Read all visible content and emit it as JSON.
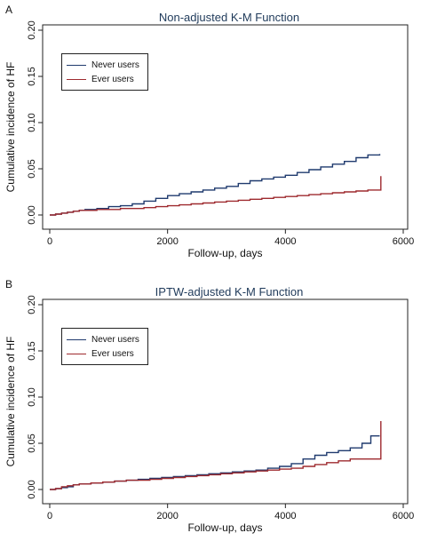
{
  "chart_data": [
    {
      "panel": "A",
      "type": "line",
      "step": true,
      "title": "Non-adjusted K-M Function",
      "xlabel": "Follow-up, days",
      "ylabel": "Cumulative incidence of HF",
      "xlim": [
        0,
        6000
      ],
      "ylim": [
        0,
        0.2
      ],
      "xticks": [
        0,
        2000,
        4000,
        6000
      ],
      "yticks": [
        0.0,
        0.05,
        0.1,
        0.15,
        0.2
      ],
      "ytick_labels": [
        "0.00",
        "0.05",
        "0.10",
        "0.15",
        "0.20"
      ],
      "grid": false,
      "legend": "top-left",
      "series": [
        {
          "name": "Never users",
          "color": "#1f3a6e",
          "x": [
            0,
            100,
            200,
            300,
            400,
            500,
            600,
            800,
            1000,
            1200,
            1400,
            1600,
            1800,
            2000,
            2200,
            2400,
            2600,
            2800,
            3000,
            3200,
            3400,
            3600,
            3800,
            4000,
            4200,
            4400,
            4600,
            4800,
            5000,
            5200,
            5400,
            5600
          ],
          "y": [
            0,
            0.001,
            0.002,
            0.003,
            0.004,
            0.005,
            0.006,
            0.007,
            0.009,
            0.01,
            0.012,
            0.015,
            0.018,
            0.021,
            0.023,
            0.025,
            0.027,
            0.029,
            0.031,
            0.034,
            0.037,
            0.039,
            0.041,
            0.043,
            0.046,
            0.049,
            0.052,
            0.055,
            0.058,
            0.062,
            0.065,
            0.066
          ]
        },
        {
          "name": "Ever users",
          "color": "#9e2a2f",
          "x": [
            0,
            100,
            200,
            300,
            400,
            500,
            600,
            800,
            1000,
            1200,
            1400,
            1600,
            1800,
            2000,
            2200,
            2400,
            2600,
            2800,
            3000,
            3200,
            3400,
            3600,
            3800,
            4000,
            4200,
            4400,
            4600,
            4800,
            5000,
            5200,
            5400,
            5600,
            5620
          ],
          "y": [
            0,
            0.001,
            0.002,
            0.003,
            0.004,
            0.005,
            0.005,
            0.006,
            0.006,
            0.007,
            0.007,
            0.008,
            0.009,
            0.01,
            0.011,
            0.012,
            0.013,
            0.014,
            0.015,
            0.016,
            0.017,
            0.018,
            0.019,
            0.02,
            0.021,
            0.022,
            0.023,
            0.024,
            0.025,
            0.026,
            0.027,
            0.027,
            0.042
          ]
        }
      ]
    },
    {
      "panel": "B",
      "type": "line",
      "step": true,
      "title": "IPTW-adjusted K-M Function",
      "xlabel": "Follow-up, days",
      "ylabel": "Cumulative incidence of HF",
      "xlim": [
        0,
        6000
      ],
      "ylim": [
        0,
        0.2
      ],
      "xticks": [
        0,
        2000,
        4000,
        6000
      ],
      "yticks": [
        0.0,
        0.05,
        0.1,
        0.15,
        0.2
      ],
      "ytick_labels": [
        "0.00",
        "0.05",
        "0.10",
        "0.15",
        "0.20"
      ],
      "grid": false,
      "legend": "top-left",
      "series": [
        {
          "name": "Never users",
          "color": "#1f3a6e",
          "x": [
            0,
            100,
            200,
            300,
            400,
            500,
            700,
            900,
            1100,
            1300,
            1500,
            1700,
            1900,
            2100,
            2300,
            2500,
            2700,
            2900,
            3100,
            3300,
            3500,
            3700,
            3900,
            4100,
            4300,
            4500,
            4700,
            4900,
            5100,
            5300,
            5450,
            5600
          ],
          "y": [
            0,
            0.001,
            0.002,
            0.003,
            0.005,
            0.006,
            0.007,
            0.008,
            0.009,
            0.01,
            0.011,
            0.012,
            0.013,
            0.014,
            0.015,
            0.016,
            0.017,
            0.018,
            0.019,
            0.02,
            0.021,
            0.023,
            0.025,
            0.028,
            0.033,
            0.037,
            0.04,
            0.042,
            0.045,
            0.05,
            0.058,
            0.058
          ]
        },
        {
          "name": "Ever users",
          "color": "#9e2a2f",
          "x": [
            0,
            100,
            200,
            300,
            400,
            500,
            700,
            900,
            1100,
            1300,
            1500,
            1700,
            1900,
            2100,
            2300,
            2500,
            2700,
            2900,
            3100,
            3300,
            3500,
            3700,
            3900,
            4100,
            4300,
            4500,
            4700,
            4900,
            5100,
            5300,
            5450,
            5600,
            5620
          ],
          "y": [
            0,
            0.001,
            0.003,
            0.004,
            0.005,
            0.006,
            0.007,
            0.008,
            0.009,
            0.01,
            0.01,
            0.011,
            0.012,
            0.013,
            0.014,
            0.015,
            0.016,
            0.017,
            0.018,
            0.019,
            0.02,
            0.021,
            0.022,
            0.023,
            0.025,
            0.027,
            0.029,
            0.031,
            0.033,
            0.033,
            0.033,
            0.033,
            0.074
          ]
        }
      ]
    }
  ]
}
